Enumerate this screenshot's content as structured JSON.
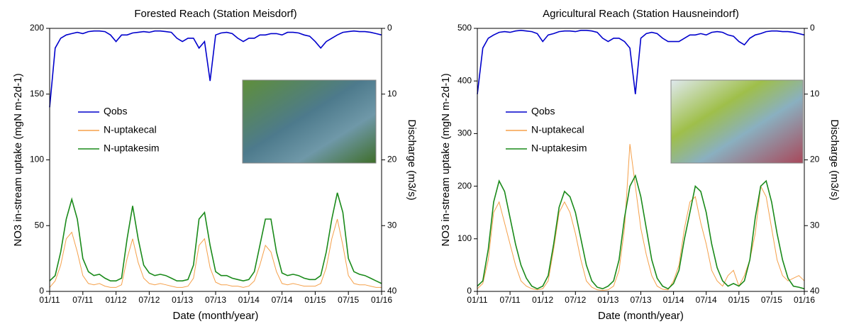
{
  "chart_data": [
    {
      "type": "line",
      "title": "Forested Reach (Station Meisdorf)",
      "xlabel": "Date (month/year)",
      "ylabel": "NO3 in-stream uptake (mgN m-2d-1)",
      "y2label": "Discharge (m3/s)",
      "x": [
        "01/11",
        "02/11",
        "03/11",
        "04/11",
        "05/11",
        "06/11",
        "07/11",
        "08/11",
        "09/11",
        "10/11",
        "11/11",
        "12/11",
        "01/12",
        "02/12",
        "03/12",
        "04/12",
        "05/12",
        "06/12",
        "07/12",
        "08/12",
        "09/12",
        "10/12",
        "11/12",
        "12/12",
        "01/13",
        "02/13",
        "03/13",
        "04/13",
        "05/13",
        "06/13",
        "07/13",
        "08/13",
        "09/13",
        "10/13",
        "11/13",
        "12/13",
        "01/14",
        "02/14",
        "03/14",
        "04/14",
        "05/14",
        "06/14",
        "07/14",
        "08/14",
        "09/14",
        "10/14",
        "11/14",
        "12/14",
        "01/15",
        "02/15",
        "03/15",
        "04/15",
        "05/15",
        "06/15",
        "07/15",
        "08/15",
        "09/15",
        "10/15",
        "11/15",
        "12/15",
        "01/16"
      ],
      "xticks": [
        "01/11",
        "07/11",
        "01/12",
        "07/12",
        "01/13",
        "07/13",
        "01/14",
        "07/14",
        "01/15",
        "07/15",
        "01/16"
      ],
      "ylim": [
        0,
        200
      ],
      "yticks": [
        0,
        50,
        100,
        150,
        200
      ],
      "y2lim": [
        40,
        0
      ],
      "y2ticks": [
        0,
        10,
        20,
        30,
        40
      ],
      "series": [
        {
          "name": "Qobs",
          "color": "#0000cc",
          "axis": "y2",
          "values": [
            12,
            3,
            1.5,
            1,
            0.8,
            0.6,
            0.8,
            0.5,
            0.4,
            0.4,
            0.5,
            1,
            2,
            1,
            1,
            0.7,
            0.6,
            0.5,
            0.6,
            0.4,
            0.4,
            0.5,
            0.6,
            1.5,
            2,
            1.5,
            1.5,
            3,
            2,
            8,
            1,
            0.7,
            0.6,
            0.8,
            1.5,
            2,
            1.5,
            1.5,
            1,
            1,
            0.8,
            0.8,
            1,
            0.6,
            0.6,
            0.7,
            1,
            1.2,
            2,
            3,
            2,
            1.5,
            1,
            0.6,
            0.5,
            0.4,
            0.5,
            0.5,
            0.6,
            0.8,
            1
          ]
        },
        {
          "name": "N-uptakecal",
          "color": "#f5a04a",
          "values": [
            3,
            8,
            20,
            40,
            45,
            30,
            12,
            6,
            5,
            6,
            4,
            3,
            3,
            5,
            25,
            40,
            22,
            10,
            6,
            5,
            6,
            5,
            4,
            3,
            3,
            4,
            10,
            35,
            40,
            18,
            7,
            5,
            5,
            4,
            4,
            3,
            4,
            8,
            20,
            35,
            30,
            15,
            6,
            5,
            6,
            5,
            4,
            4,
            4,
            6,
            18,
            40,
            55,
            35,
            12,
            6,
            5,
            5,
            4,
            3,
            3
          ]
        },
        {
          "name": "N-uptakesim",
          "color": "#1a8a1a",
          "values": [
            8,
            12,
            30,
            55,
            70,
            55,
            25,
            15,
            12,
            13,
            10,
            8,
            8,
            10,
            40,
            65,
            40,
            20,
            14,
            12,
            13,
            12,
            10,
            8,
            8,
            9,
            20,
            55,
            60,
            35,
            15,
            12,
            12,
            10,
            9,
            8,
            9,
            15,
            35,
            55,
            55,
            30,
            14,
            12,
            13,
            12,
            10,
            9,
            9,
            12,
            30,
            55,
            75,
            60,
            25,
            15,
            13,
            12,
            10,
            8,
            6
          ]
        }
      ]
    },
    {
      "type": "line",
      "title": "Agricultural Reach (Station Hausneindorf)",
      "xlabel": "Date (month/year)",
      "ylabel": "NO3 in-stream uptake (mgN m-2d-1)",
      "y2label": "Discharge (m3/s)",
      "x": [
        "01/11",
        "02/11",
        "03/11",
        "04/11",
        "05/11",
        "06/11",
        "07/11",
        "08/11",
        "09/11",
        "10/11",
        "11/11",
        "12/11",
        "01/12",
        "02/12",
        "03/12",
        "04/12",
        "05/12",
        "06/12",
        "07/12",
        "08/12",
        "09/12",
        "10/12",
        "11/12",
        "12/12",
        "01/13",
        "02/13",
        "03/13",
        "04/13",
        "05/13",
        "06/13",
        "07/13",
        "08/13",
        "09/13",
        "10/13",
        "11/13",
        "12/13",
        "01/14",
        "02/14",
        "03/14",
        "04/14",
        "05/14",
        "06/14",
        "07/14",
        "08/14",
        "09/14",
        "10/14",
        "11/14",
        "12/14",
        "01/15",
        "02/15",
        "03/15",
        "04/15",
        "05/15",
        "06/15",
        "07/15",
        "08/15",
        "09/15",
        "10/15",
        "11/15",
        "12/15",
        "01/16"
      ],
      "xticks": [
        "01/11",
        "07/11",
        "01/12",
        "07/12",
        "01/13",
        "07/13",
        "01/14",
        "07/14",
        "01/15",
        "07/15",
        "01/16"
      ],
      "ylim": [
        0,
        500
      ],
      "yticks": [
        0,
        100,
        200,
        300,
        400,
        500
      ],
      "y2lim": [
        40,
        0
      ],
      "y2ticks": [
        0,
        10,
        20,
        30,
        40
      ],
      "series": [
        {
          "name": "Qobs",
          "color": "#0000cc",
          "axis": "y2",
          "values": [
            10,
            3,
            1.5,
            1,
            0.6,
            0.5,
            0.6,
            0.4,
            0.3,
            0.4,
            0.5,
            0.8,
            2,
            1,
            0.8,
            0.5,
            0.4,
            0.4,
            0.5,
            0.3,
            0.3,
            0.4,
            0.6,
            1.5,
            2,
            1.5,
            1.5,
            2,
            3,
            10,
            1.5,
            0.8,
            0.6,
            0.8,
            1.5,
            2,
            2,
            2,
            1.5,
            1,
            1,
            0.8,
            1,
            0.6,
            0.5,
            0.6,
            1,
            1.2,
            2,
            2.5,
            1.5,
            1,
            0.8,
            0.5,
            0.4,
            0.4,
            0.5,
            0.5,
            0.6,
            0.8,
            1
          ]
        },
        {
          "name": "N-uptakecal",
          "color": "#f5a04a",
          "values": [
            5,
            15,
            60,
            150,
            170,
            130,
            90,
            50,
            20,
            10,
            5,
            3,
            5,
            20,
            80,
            150,
            170,
            150,
            110,
            60,
            20,
            8,
            3,
            2,
            3,
            10,
            40,
            120,
            280,
            200,
            120,
            70,
            30,
            10,
            4,
            3,
            20,
            50,
            120,
            170,
            180,
            130,
            90,
            40,
            20,
            10,
            30,
            40,
            10,
            30,
            60,
            110,
            200,
            180,
            120,
            60,
            30,
            20,
            25,
            30,
            20
          ]
        },
        {
          "name": "N-uptakesim",
          "color": "#1a8a1a",
          "values": [
            10,
            20,
            80,
            170,
            210,
            190,
            140,
            90,
            50,
            25,
            10,
            5,
            10,
            30,
            90,
            160,
            190,
            180,
            150,
            100,
            50,
            20,
            8,
            5,
            10,
            20,
            60,
            140,
            200,
            220,
            180,
            120,
            60,
            25,
            10,
            5,
            15,
            40,
            100,
            150,
            200,
            190,
            150,
            90,
            45,
            20,
            10,
            15,
            10,
            20,
            60,
            140,
            200,
            210,
            170,
            110,
            60,
            25,
            10,
            8,
            5
          ]
        }
      ]
    }
  ]
}
